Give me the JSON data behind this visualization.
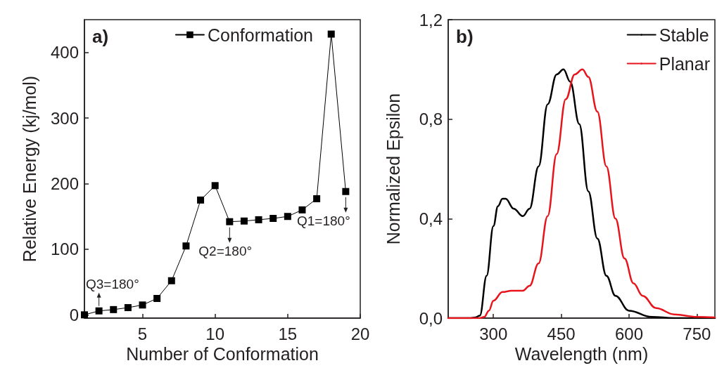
{
  "chart_data": [
    {
      "type": "line",
      "title": "a)",
      "xlabel": "Number of Conformation",
      "ylabel": "Relative Energy (kj/mol)",
      "xlim": [
        1,
        20
      ],
      "ylim": [
        -5,
        450
      ],
      "xticks": [
        5,
        10,
        15,
        20
      ],
      "yticks": [
        0,
        100,
        200,
        300,
        400
      ],
      "marker": "square",
      "legend": "top right",
      "grid": false,
      "series": [
        {
          "name": "Conformation",
          "color": "#000000",
          "x": [
            1,
            2,
            3,
            4,
            5,
            6,
            7,
            8,
            9,
            10,
            11,
            12,
            13,
            14,
            15,
            16,
            17,
            18,
            19
          ],
          "values": [
            0,
            6,
            8,
            11,
            15,
            25,
            52,
            105,
            175,
            197,
            142,
            143,
            145,
            147,
            150,
            160,
            177,
            428,
            188
          ]
        }
      ],
      "annotations": [
        {
          "text": "Q3=180°",
          "x": 2,
          "y": 6
        },
        {
          "text": "Q2=180°",
          "x": 11,
          "y": 142
        },
        {
          "text": "Q1=180°",
          "x": 19,
          "y": 188
        }
      ]
    },
    {
      "type": "line",
      "title": "b)",
      "xlabel": "Wavelength (nm)",
      "ylabel": "Normalized Epsilon",
      "xlim": [
        200,
        790
      ],
      "ylim": [
        0,
        1.2
      ],
      "xticks": [
        300,
        450,
        600,
        750
      ],
      "yticks": [
        {
          "value": 0,
          "label": "0,0"
        },
        {
          "value": 0.4,
          "label": "0,4"
        },
        {
          "value": 0.8,
          "label": "0,8"
        },
        {
          "value": 1.2,
          "label": "1,2"
        }
      ],
      "marker": "none",
      "legend": "top right",
      "grid": false,
      "series": [
        {
          "name": "Stable",
          "color": "#000000",
          "x": [
            200,
            250,
            260,
            270,
            285,
            300,
            310,
            320,
            327,
            345,
            365,
            380,
            400,
            420,
            440,
            455,
            470,
            490,
            510,
            530,
            550,
            570,
            600,
            650,
            700,
            790
          ],
          "values": [
            0,
            0,
            0.003,
            0.01,
            0.17,
            0.37,
            0.45,
            0.48,
            0.48,
            0.44,
            0.41,
            0.44,
            0.61,
            0.86,
            0.98,
            1.0,
            0.95,
            0.78,
            0.51,
            0.32,
            0.17,
            0.09,
            0.03,
            0.005,
            0,
            0
          ]
        },
        {
          "name": "Planar",
          "color": "#e8141c",
          "x": [
            200,
            270,
            280,
            290,
            300,
            320,
            340,
            365,
            380,
            400,
            420,
            440,
            460,
            480,
            497,
            510,
            530,
            550,
            570,
            590,
            610,
            630,
            660,
            700,
            750,
            790
          ],
          "values": [
            0,
            0,
            0.005,
            0.03,
            0.07,
            0.105,
            0.11,
            0.11,
            0.13,
            0.22,
            0.41,
            0.66,
            0.88,
            0.98,
            1.0,
            0.97,
            0.83,
            0.61,
            0.4,
            0.24,
            0.14,
            0.09,
            0.04,
            0.015,
            0.005,
            0.003
          ]
        }
      ]
    }
  ]
}
